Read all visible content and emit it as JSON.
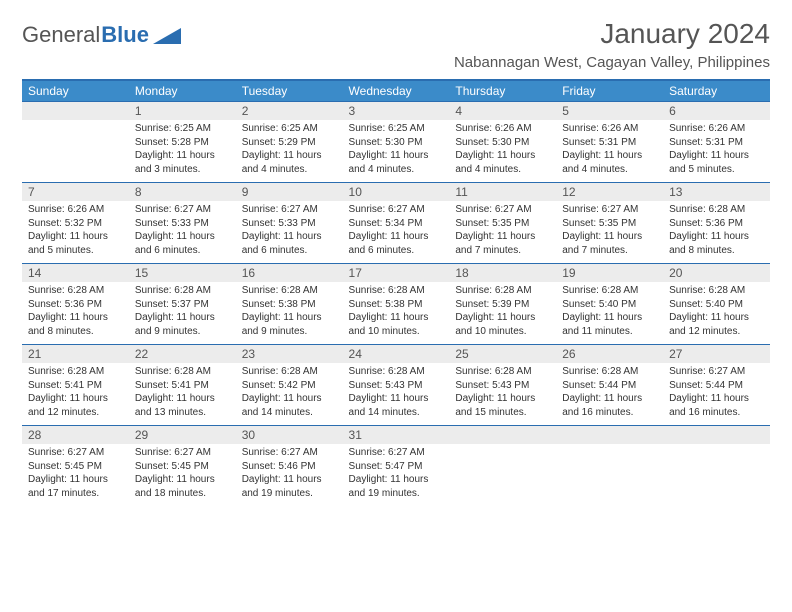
{
  "brand": {
    "part1": "General",
    "part2": "Blue"
  },
  "title": "January 2024",
  "location": "Nabannagan West, Cagayan Valley, Philippines",
  "colors": {
    "header_bg": "#3b8bc9",
    "header_border": "#2a6db0",
    "daynum_bg": "#ececec",
    "text": "#333333",
    "title_text": "#555555"
  },
  "weekdays": [
    "Sunday",
    "Monday",
    "Tuesday",
    "Wednesday",
    "Thursday",
    "Friday",
    "Saturday"
  ],
  "weeks": [
    [
      null,
      {
        "n": "1",
        "sr": "6:25 AM",
        "ss": "5:28 PM",
        "dl": "11 hours and 3 minutes."
      },
      {
        "n": "2",
        "sr": "6:25 AM",
        "ss": "5:29 PM",
        "dl": "11 hours and 4 minutes."
      },
      {
        "n": "3",
        "sr": "6:25 AM",
        "ss": "5:30 PM",
        "dl": "11 hours and 4 minutes."
      },
      {
        "n": "4",
        "sr": "6:26 AM",
        "ss": "5:30 PM",
        "dl": "11 hours and 4 minutes."
      },
      {
        "n": "5",
        "sr": "6:26 AM",
        "ss": "5:31 PM",
        "dl": "11 hours and 4 minutes."
      },
      {
        "n": "6",
        "sr": "6:26 AM",
        "ss": "5:31 PM",
        "dl": "11 hours and 5 minutes."
      }
    ],
    [
      {
        "n": "7",
        "sr": "6:26 AM",
        "ss": "5:32 PM",
        "dl": "11 hours and 5 minutes."
      },
      {
        "n": "8",
        "sr": "6:27 AM",
        "ss": "5:33 PM",
        "dl": "11 hours and 6 minutes."
      },
      {
        "n": "9",
        "sr": "6:27 AM",
        "ss": "5:33 PM",
        "dl": "11 hours and 6 minutes."
      },
      {
        "n": "10",
        "sr": "6:27 AM",
        "ss": "5:34 PM",
        "dl": "11 hours and 6 minutes."
      },
      {
        "n": "11",
        "sr": "6:27 AM",
        "ss": "5:35 PM",
        "dl": "11 hours and 7 minutes."
      },
      {
        "n": "12",
        "sr": "6:27 AM",
        "ss": "5:35 PM",
        "dl": "11 hours and 7 minutes."
      },
      {
        "n": "13",
        "sr": "6:28 AM",
        "ss": "5:36 PM",
        "dl": "11 hours and 8 minutes."
      }
    ],
    [
      {
        "n": "14",
        "sr": "6:28 AM",
        "ss": "5:36 PM",
        "dl": "11 hours and 8 minutes."
      },
      {
        "n": "15",
        "sr": "6:28 AM",
        "ss": "5:37 PM",
        "dl": "11 hours and 9 minutes."
      },
      {
        "n": "16",
        "sr": "6:28 AM",
        "ss": "5:38 PM",
        "dl": "11 hours and 9 minutes."
      },
      {
        "n": "17",
        "sr": "6:28 AM",
        "ss": "5:38 PM",
        "dl": "11 hours and 10 minutes."
      },
      {
        "n": "18",
        "sr": "6:28 AM",
        "ss": "5:39 PM",
        "dl": "11 hours and 10 minutes."
      },
      {
        "n": "19",
        "sr": "6:28 AM",
        "ss": "5:40 PM",
        "dl": "11 hours and 11 minutes."
      },
      {
        "n": "20",
        "sr": "6:28 AM",
        "ss": "5:40 PM",
        "dl": "11 hours and 12 minutes."
      }
    ],
    [
      {
        "n": "21",
        "sr": "6:28 AM",
        "ss": "5:41 PM",
        "dl": "11 hours and 12 minutes."
      },
      {
        "n": "22",
        "sr": "6:28 AM",
        "ss": "5:41 PM",
        "dl": "11 hours and 13 minutes."
      },
      {
        "n": "23",
        "sr": "6:28 AM",
        "ss": "5:42 PM",
        "dl": "11 hours and 14 minutes."
      },
      {
        "n": "24",
        "sr": "6:28 AM",
        "ss": "5:43 PM",
        "dl": "11 hours and 14 minutes."
      },
      {
        "n": "25",
        "sr": "6:28 AM",
        "ss": "5:43 PM",
        "dl": "11 hours and 15 minutes."
      },
      {
        "n": "26",
        "sr": "6:28 AM",
        "ss": "5:44 PM",
        "dl": "11 hours and 16 minutes."
      },
      {
        "n": "27",
        "sr": "6:27 AM",
        "ss": "5:44 PM",
        "dl": "11 hours and 16 minutes."
      }
    ],
    [
      {
        "n": "28",
        "sr": "6:27 AM",
        "ss": "5:45 PM",
        "dl": "11 hours and 17 minutes."
      },
      {
        "n": "29",
        "sr": "6:27 AM",
        "ss": "5:45 PM",
        "dl": "11 hours and 18 minutes."
      },
      {
        "n": "30",
        "sr": "6:27 AM",
        "ss": "5:46 PM",
        "dl": "11 hours and 19 minutes."
      },
      {
        "n": "31",
        "sr": "6:27 AM",
        "ss": "5:47 PM",
        "dl": "11 hours and 19 minutes."
      },
      null,
      null,
      null
    ]
  ],
  "labels": {
    "sunrise": "Sunrise:",
    "sunset": "Sunset:",
    "daylight": "Daylight:"
  }
}
